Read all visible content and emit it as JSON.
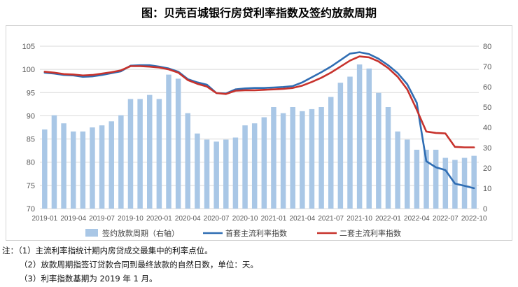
{
  "chart_data": {
    "type": "bar",
    "title": "图：贝壳百城银行房贷利率指数及签约放款周期",
    "x": [
      "2019-01",
      "2019-02",
      "2019-03",
      "2019-04",
      "2019-05",
      "2019-06",
      "2019-07",
      "2019-08",
      "2019-09",
      "2019-10",
      "2019-11",
      "2019-12",
      "2020-01",
      "2020-02",
      "2020-03",
      "2020-04",
      "2020-05",
      "2020-06",
      "2020-07",
      "2020-08",
      "2020-09",
      "2020-10",
      "2020-11",
      "2020-12",
      "2021-01",
      "2021-02",
      "2021-03",
      "2021-04",
      "2021-05",
      "2021-06",
      "2021-07",
      "2021-08",
      "2021-09",
      "2021-10",
      "2021-11",
      "2021-12",
      "2022-01",
      "2022-02",
      "2022-03",
      "2022-04",
      "2022-05",
      "2022-06",
      "2022-07",
      "2022-08",
      "2022-09",
      "2022-10"
    ],
    "xticks": [
      "2019-01",
      "2019-04",
      "2019-07",
      "2019-10",
      "2020-01",
      "2020-04",
      "2020-07",
      "2020-10",
      "2021-01",
      "2021-04",
      "2021-07",
      "2021-10",
      "2022-01",
      "2022-04",
      "2022-07",
      "2022-10"
    ],
    "ylim": [
      70,
      105
    ],
    "yticks": [
      70,
      75,
      80,
      85,
      90,
      95,
      100,
      105
    ],
    "y2lim": [
      0,
      80
    ],
    "y2ticks": [
      0,
      10,
      20,
      30,
      40,
      50,
      60,
      70,
      80
    ],
    "grid": true,
    "legend": "bottom",
    "series": [
      {
        "name": "签约放款周期（右轴）",
        "type": "bar",
        "axis": "right",
        "color": "#a9c7e6",
        "values": [
          39,
          46,
          42,
          38,
          38,
          40,
          41,
          43,
          46,
          54,
          54,
          56,
          54,
          66,
          64,
          47,
          37,
          34,
          33,
          34,
          35,
          41,
          42,
          45,
          50,
          47,
          50,
          48,
          49,
          50,
          55,
          62,
          65,
          71,
          69,
          57,
          50,
          38,
          34,
          29,
          29,
          29,
          25,
          24,
          25,
          26
        ]
      },
      {
        "name": "首套主流利率指数",
        "type": "line",
        "axis": "left",
        "color": "#2f6db3",
        "values": [
          99.3,
          99.1,
          98.8,
          98.7,
          98.4,
          98.5,
          98.8,
          99.2,
          99.6,
          100.8,
          100.9,
          100.9,
          100.6,
          100.2,
          99.5,
          97.9,
          97.2,
          96.7,
          94.9,
          94.8,
          95.7,
          95.9,
          96.0,
          96.0,
          96.1,
          96.2,
          96.4,
          97.2,
          98.3,
          99.4,
          100.6,
          102.0,
          103.4,
          103.7,
          103.3,
          102.3,
          100.9,
          99.2,
          96.8,
          92.8,
          80.2,
          78.9,
          78.3,
          75.4,
          74.9,
          74.4
        ]
      },
      {
        "name": "二套主流利率指数",
        "type": "line",
        "axis": "left",
        "color": "#c7322c",
        "values": [
          99.5,
          99.3,
          99.0,
          98.9,
          98.7,
          98.8,
          99.1,
          99.4,
          99.8,
          100.7,
          100.7,
          100.6,
          100.4,
          100.0,
          99.3,
          97.7,
          96.9,
          96.3,
          94.9,
          94.7,
          95.4,
          95.5,
          95.5,
          95.6,
          95.7,
          95.8,
          96.0,
          96.5,
          97.3,
          98.2,
          99.3,
          100.6,
          101.9,
          102.8,
          102.6,
          101.7,
          100.3,
          98.4,
          95.7,
          91.3,
          86.6,
          86.3,
          86.2,
          83.3,
          83.2,
          83.2
        ]
      }
    ]
  },
  "notes": [
    "注：（1）主流利率指统计期内房贷成交最集中的利率点位。",
    "（2）放款周期指签订贷款合同到最终放款的自然日数，单位：天。",
    "（3）利率指数基期为 2019 年 1 月。"
  ]
}
